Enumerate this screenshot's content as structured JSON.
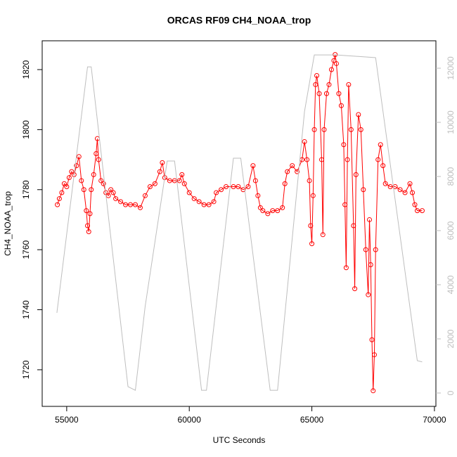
{
  "chart_data": {
    "type": "line",
    "title": "ORCAS RF09 CH4_NOAA_trop",
    "x_label": "UTC Seconds",
    "y_label": "CH4_NOAA_trop",
    "xlim": [
      54000,
      70060
    ],
    "ylim": [
      1707.8,
      1829.6
    ],
    "y2lim": [
      -494,
      13013
    ],
    "xticks": [
      55000,
      60000,
      65000,
      70000
    ],
    "yticks": [
      1720,
      1740,
      1760,
      1780,
      1800,
      1820
    ],
    "y2ticks": [
      0,
      2000,
      4000,
      6000,
      8000,
      10000,
      12000
    ],
    "series": [
      {
        "color": "#ff0000",
        "markers": true,
        "x": [
          54620,
          54700,
          54800,
          54900,
          55000,
          55100,
          55200,
          55300,
          55400,
          55500,
          55600,
          55700,
          55800,
          55850,
          55900,
          55950,
          56000,
          56100,
          56200,
          56250,
          56300,
          56400,
          56500,
          56600,
          56700,
          56800,
          56900,
          57000,
          57200,
          57400,
          57600,
          57800,
          58000,
          58200,
          58400,
          58600,
          58800,
          58900,
          59000,
          59200,
          59400,
          59600,
          59700,
          59800,
          60000,
          60200,
          60400,
          60600,
          60800,
          61000,
          61100,
          61300,
          61500,
          61800,
          62000,
          62200,
          62400,
          62600,
          62700,
          62800,
          62900,
          63000,
          63200,
          63400,
          63600,
          63800,
          63900,
          64000,
          64200,
          64400,
          64600,
          64700,
          64800,
          64900,
          64950,
          65000,
          65050,
          65100,
          65150,
          65200,
          65300,
          65400,
          65450,
          65500,
          65600,
          65700,
          65800,
          65900,
          65950,
          66000,
          66100,
          66200,
          66300,
          66350,
          66400,
          66450,
          66500,
          66600,
          66700,
          66750,
          66800,
          66900,
          67000,
          67100,
          67200,
          67300,
          67350,
          67400,
          67450,
          67500,
          67550,
          67600,
          67700,
          67800,
          67900,
          68000,
          68200,
          68400,
          68600,
          68800,
          69000,
          69100,
          69200,
          69300,
          69500
        ],
        "values": [
          1775,
          1777,
          1779,
          1782,
          1781,
          1784,
          1786,
          1785,
          1788,
          1791,
          1783,
          1780,
          1773,
          1768,
          1766,
          1772,
          1780,
          1785,
          1792,
          1797,
          1790,
          1783,
          1782,
          1779,
          1778,
          1780,
          1779,
          1777,
          1776,
          1775,
          1775,
          1775,
          1774,
          1778,
          1781,
          1782,
          1786,
          1789,
          1784,
          1783,
          1783,
          1783,
          1785,
          1782,
          1779,
          1777,
          1776,
          1775,
          1775,
          1776,
          1779,
          1780,
          1781,
          1781,
          1781,
          1780,
          1781,
          1788,
          1783,
          1778,
          1774,
          1773,
          1772,
          1773,
          1773,
          1774,
          1782,
          1786,
          1788,
          1786,
          1790,
          1796,
          1790,
          1783,
          1768,
          1762,
          1778,
          1800,
          1815,
          1818,
          1812,
          1790,
          1765,
          1800,
          1812,
          1815,
          1820,
          1823,
          1825,
          1822,
          1812,
          1808,
          1795,
          1775,
          1754,
          1790,
          1815,
          1800,
          1768,
          1747,
          1785,
          1805,
          1800,
          1780,
          1760,
          1745,
          1770,
          1755,
          1730,
          1713,
          1725,
          1760,
          1790,
          1795,
          1788,
          1782,
          1781,
          1781,
          1780,
          1779,
          1782,
          1779,
          1775,
          1773,
          1773
        ]
      },
      {
        "color": "#bebebe",
        "axis": "y2",
        "x": [
          54600,
          55850,
          56000,
          57500,
          57800,
          58200,
          59100,
          59400,
          60500,
          60700,
          61800,
          62100,
          63300,
          63600,
          64700,
          65100,
          66000,
          67600,
          69300,
          69500
        ],
        "values": [
          2961,
          12050,
          12050,
          234,
          100,
          3200,
          8570,
          8570,
          100,
          100,
          8675,
          8675,
          100,
          100,
          10400,
          12490,
          12490,
          12390,
          1195,
          1150
        ]
      }
    ]
  }
}
